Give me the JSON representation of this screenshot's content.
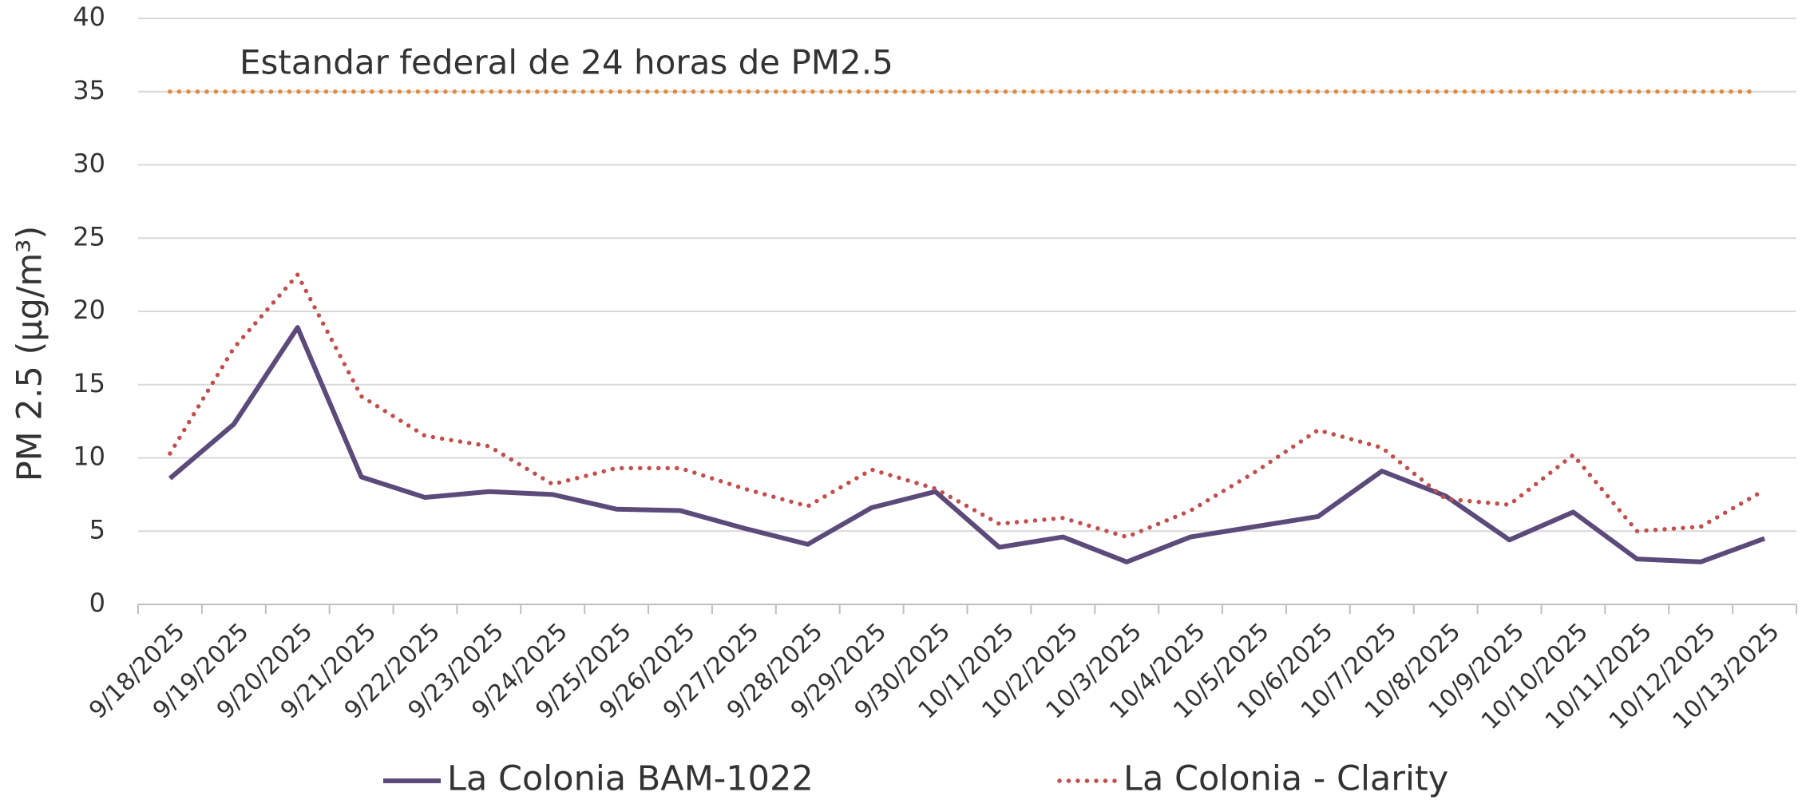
{
  "chart_data": {
    "type": "line",
    "y_label": "PM 2.5 (µg/m³)",
    "categories": [
      "9/18/2025",
      "9/19/2025",
      "9/20/2025",
      "9/21/2025",
      "9/22/2025",
      "9/23/2025",
      "9/24/2025",
      "9/25/2025",
      "9/26/2025",
      "9/27/2025",
      "9/28/2025",
      "9/29/2025",
      "9/30/2025",
      "10/1/2025",
      "10/2/2025",
      "10/3/2025",
      "10/4/2025",
      "10/5/2025",
      "10/6/2025",
      "10/7/2025",
      "10/8/2025",
      "10/9/2025",
      "10/10/2025",
      "10/11/2025",
      "10/12/2025",
      "10/13/2025"
    ],
    "series": [
      {
        "name": "La Colonia BAM-1022",
        "color": "#5b4a7a",
        "style": "solid",
        "values": [
          8.6,
          12.3,
          18.9,
          8.7,
          7.3,
          7.7,
          7.5,
          6.5,
          6.4,
          5.2,
          4.1,
          6.6,
          7.7,
          3.9,
          4.6,
          2.9,
          4.6,
          5.3,
          6.0,
          9.1,
          7.4,
          4.4,
          6.3,
          3.1,
          2.9,
          4.5
        ]
      },
      {
        "name": "La Colonia - Clarity",
        "color": "#c0504d",
        "style": "dotted",
        "values": [
          10.3,
          17.5,
          22.5,
          14.2,
          11.5,
          10.8,
          8.2,
          9.3,
          9.3,
          7.9,
          6.7,
          9.2,
          7.9,
          5.5,
          5.9,
          4.6,
          6.4,
          9.0,
          11.9,
          10.7,
          7.2,
          6.8,
          10.2,
          5.0,
          5.3,
          7.8
        ]
      }
    ],
    "reference_line": {
      "value": 35,
      "label": "Estandar federal de 24 horas de PM2.5",
      "color": "#e08a3c",
      "style": "dotted"
    },
    "ylim": [
      0,
      40
    ],
    "yticks": [
      0,
      5,
      10,
      15,
      20,
      25,
      30,
      35,
      40
    ],
    "grid": true,
    "legend": "bottom"
  }
}
